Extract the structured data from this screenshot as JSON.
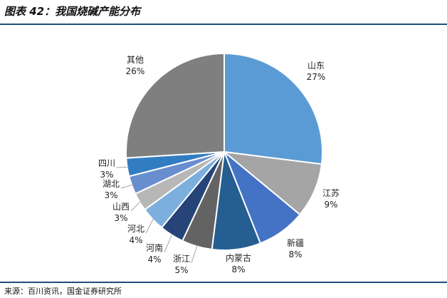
{
  "header": {
    "title": "图表 42：我国烧碱产能分布"
  },
  "footer": {
    "source": "来源：百川资讯，国金证券研究所"
  },
  "chart_data": {
    "type": "pie",
    "categories": [
      "山东",
      "江苏",
      "新疆",
      "内蒙古",
      "浙江",
      "河南",
      "河北",
      "山西",
      "湖北",
      "四川",
      "其他"
    ],
    "values": [
      27,
      9,
      8,
      8,
      5,
      4,
      4,
      3,
      3,
      3,
      26
    ],
    "labels": [
      "27%",
      "9%",
      "8%",
      "8%",
      "5%",
      "4%",
      "4%",
      "3%",
      "3%",
      "3%",
      "26%"
    ],
    "colors": [
      "#5b9bd5",
      "#a5a5a5",
      "#4472c4",
      "#255e91",
      "#636363",
      "#264478",
      "#7cafdd",
      "#b7b7b7",
      "#698ed0",
      "#327dc2",
      "#7f7f7f"
    ],
    "start_angle_deg": 0,
    "direction": "clockwise"
  }
}
